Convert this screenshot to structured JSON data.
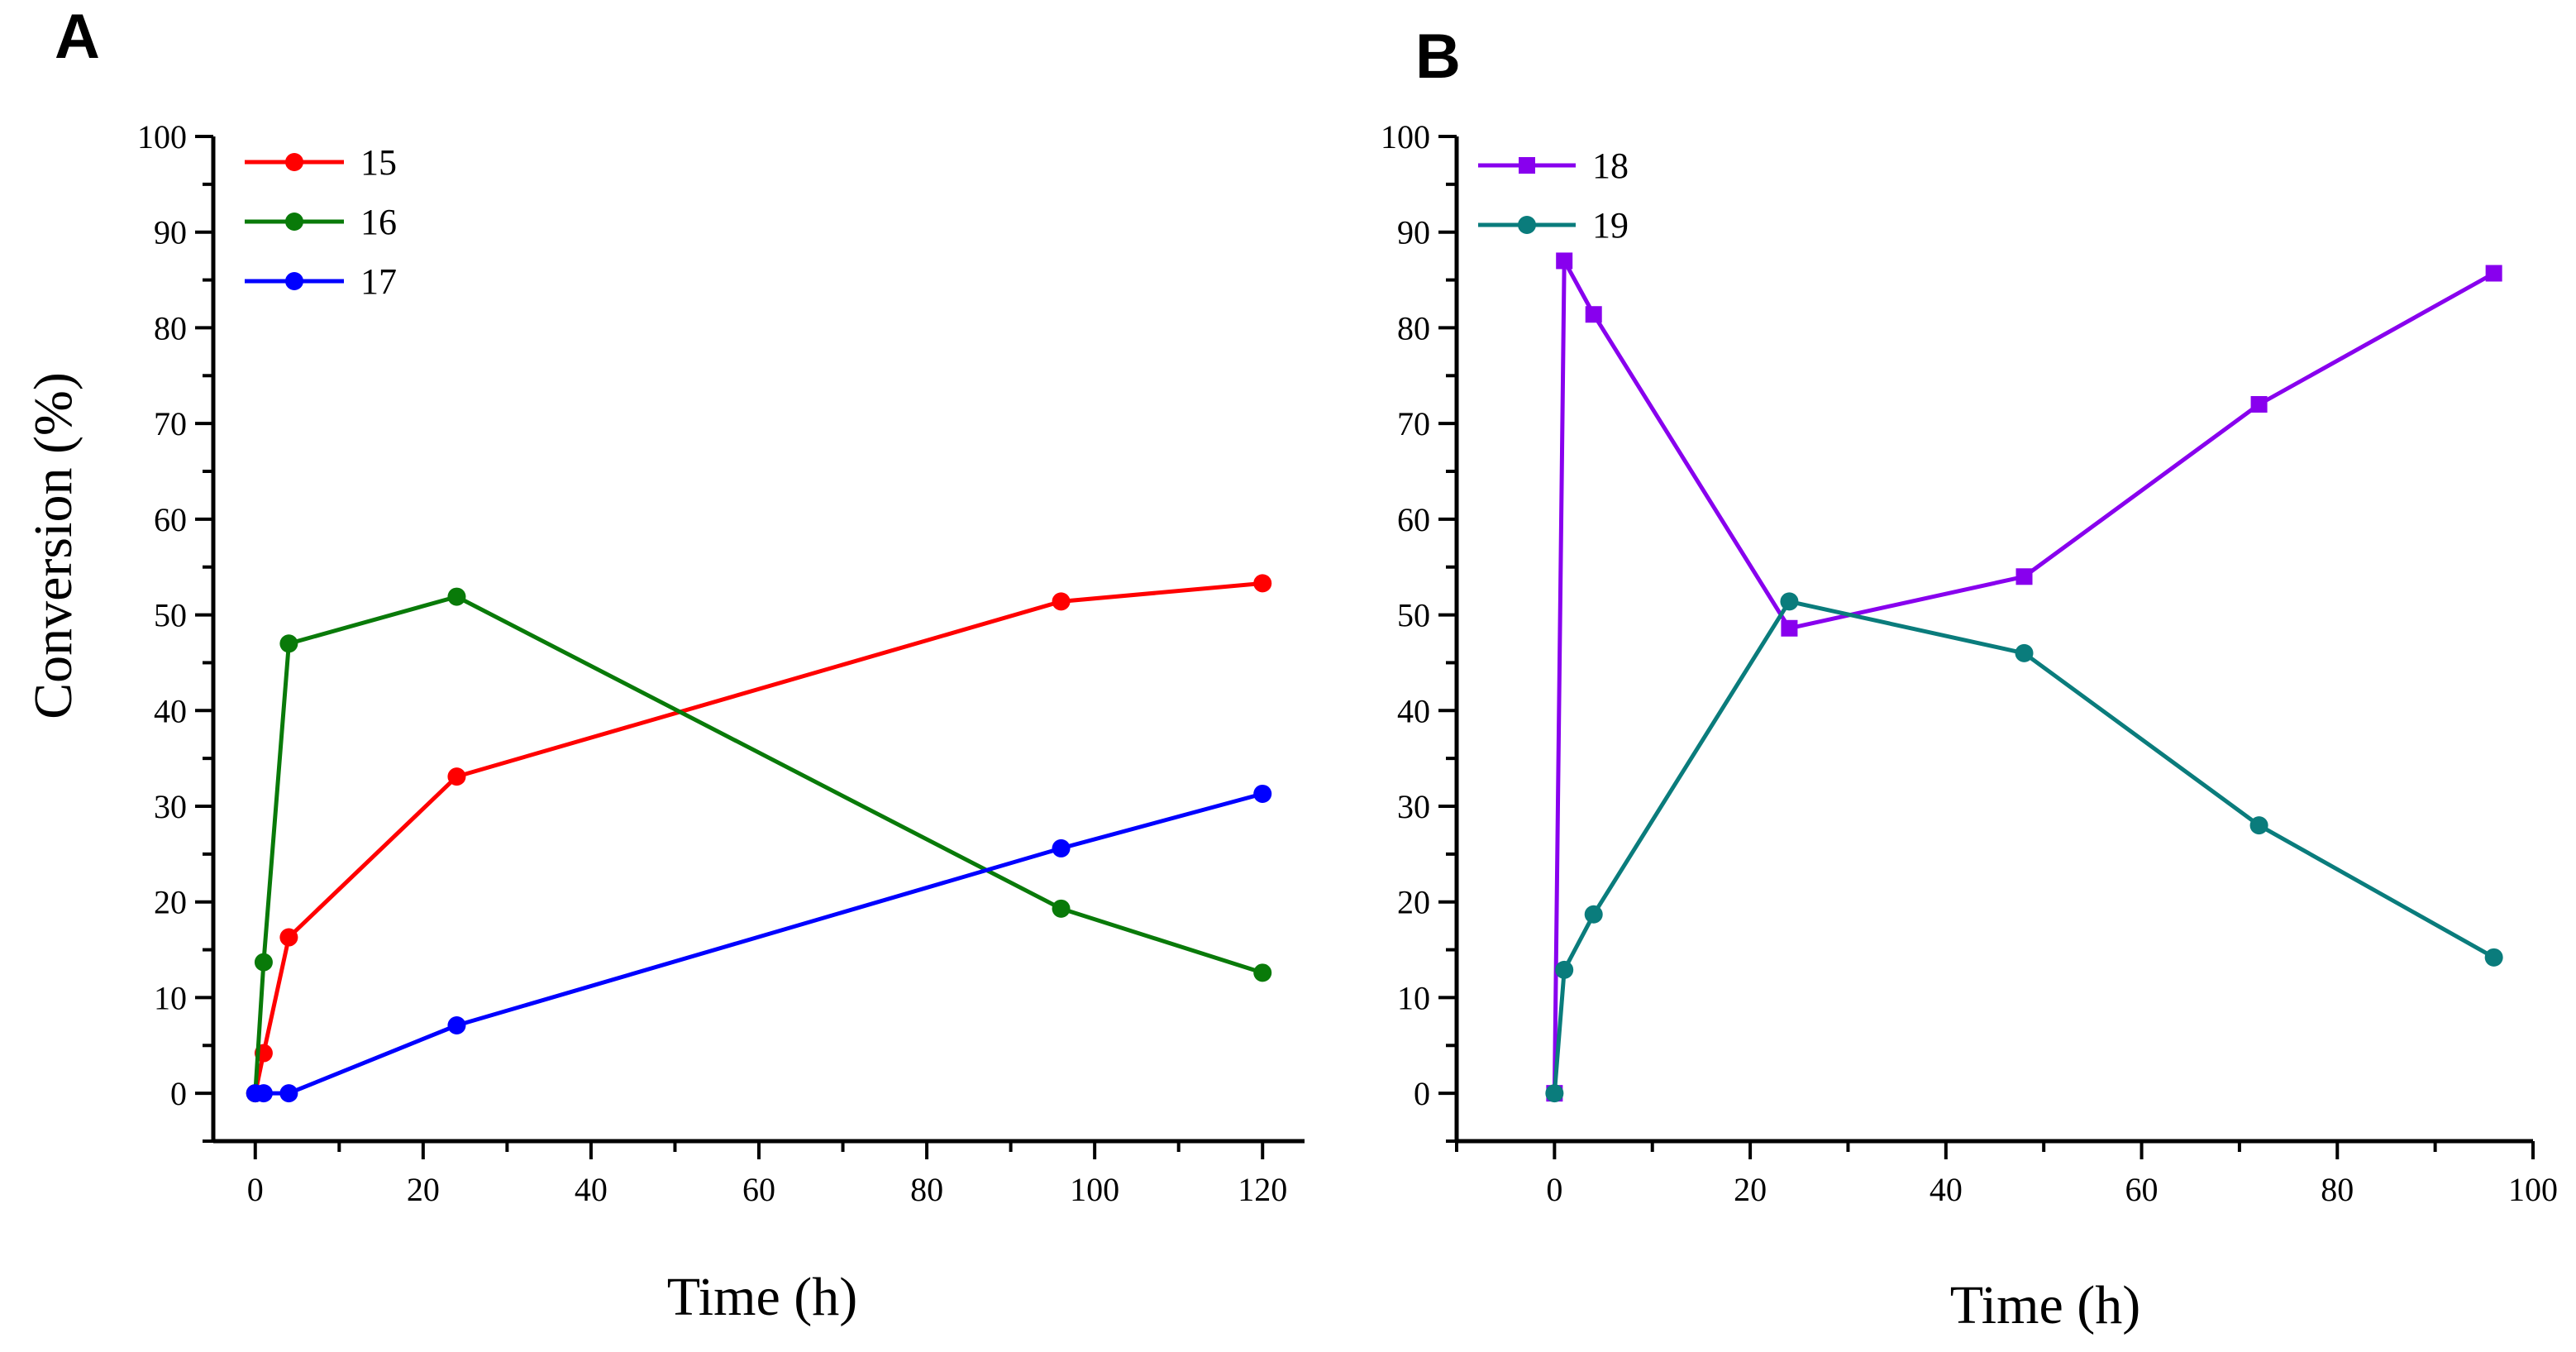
{
  "chart_data": [
    {
      "panel": "A",
      "type": "line",
      "title": "",
      "xlabel": "Time (h)",
      "ylabel": "Conversion (%)",
      "xlim": [
        -5,
        125
      ],
      "ylim": [
        -5,
        100
      ],
      "xticks": [
        0,
        20,
        40,
        60,
        80,
        100,
        120
      ],
      "yticks": [
        0,
        10,
        20,
        30,
        40,
        50,
        60,
        70,
        80,
        90,
        100
      ],
      "legend_position": "top-left",
      "grid": false,
      "series": [
        {
          "name": "15",
          "color": "#ff0000",
          "marker": "circle",
          "x": [
            0,
            1,
            4,
            24,
            96,
            120
          ],
          "values": [
            0,
            4.2,
            16.3,
            33.1,
            51.4,
            53.3
          ]
        },
        {
          "name": "16",
          "color": "#097a09",
          "marker": "circle",
          "x": [
            0,
            1,
            4,
            24,
            96,
            120
          ],
          "values": [
            0,
            13.7,
            47.0,
            51.9,
            19.3,
            12.6
          ]
        },
        {
          "name": "17",
          "color": "#0000ff",
          "marker": "circle",
          "x": [
            0,
            1,
            4,
            24,
            96,
            120
          ],
          "values": [
            0,
            0,
            0,
            7.1,
            25.6,
            31.3
          ]
        }
      ]
    },
    {
      "panel": "B",
      "type": "line",
      "title": "",
      "xlabel": "Time (h)",
      "ylabel": "",
      "xlim": [
        -10,
        100
      ],
      "ylim": [
        -5,
        100
      ],
      "xticks": [
        0,
        20,
        40,
        60,
        80,
        100
      ],
      "yticks": [
        0,
        10,
        20,
        30,
        40,
        50,
        60,
        70,
        80,
        90,
        100
      ],
      "legend_position": "top-left",
      "grid": false,
      "series": [
        {
          "name": "18",
          "color": "#8800ee",
          "marker": "square",
          "x": [
            0,
            1,
            4,
            24,
            48,
            72,
            96
          ],
          "values": [
            0,
            87.0,
            81.4,
            48.6,
            54.0,
            72.0,
            85.7
          ]
        },
        {
          "name": "19",
          "color": "#0a7c7c",
          "marker": "circle",
          "x": [
            0,
            1,
            4,
            24,
            48,
            72,
            96
          ],
          "values": [
            0,
            12.9,
            18.7,
            51.4,
            46.0,
            28.0,
            14.2
          ]
        }
      ]
    }
  ]
}
